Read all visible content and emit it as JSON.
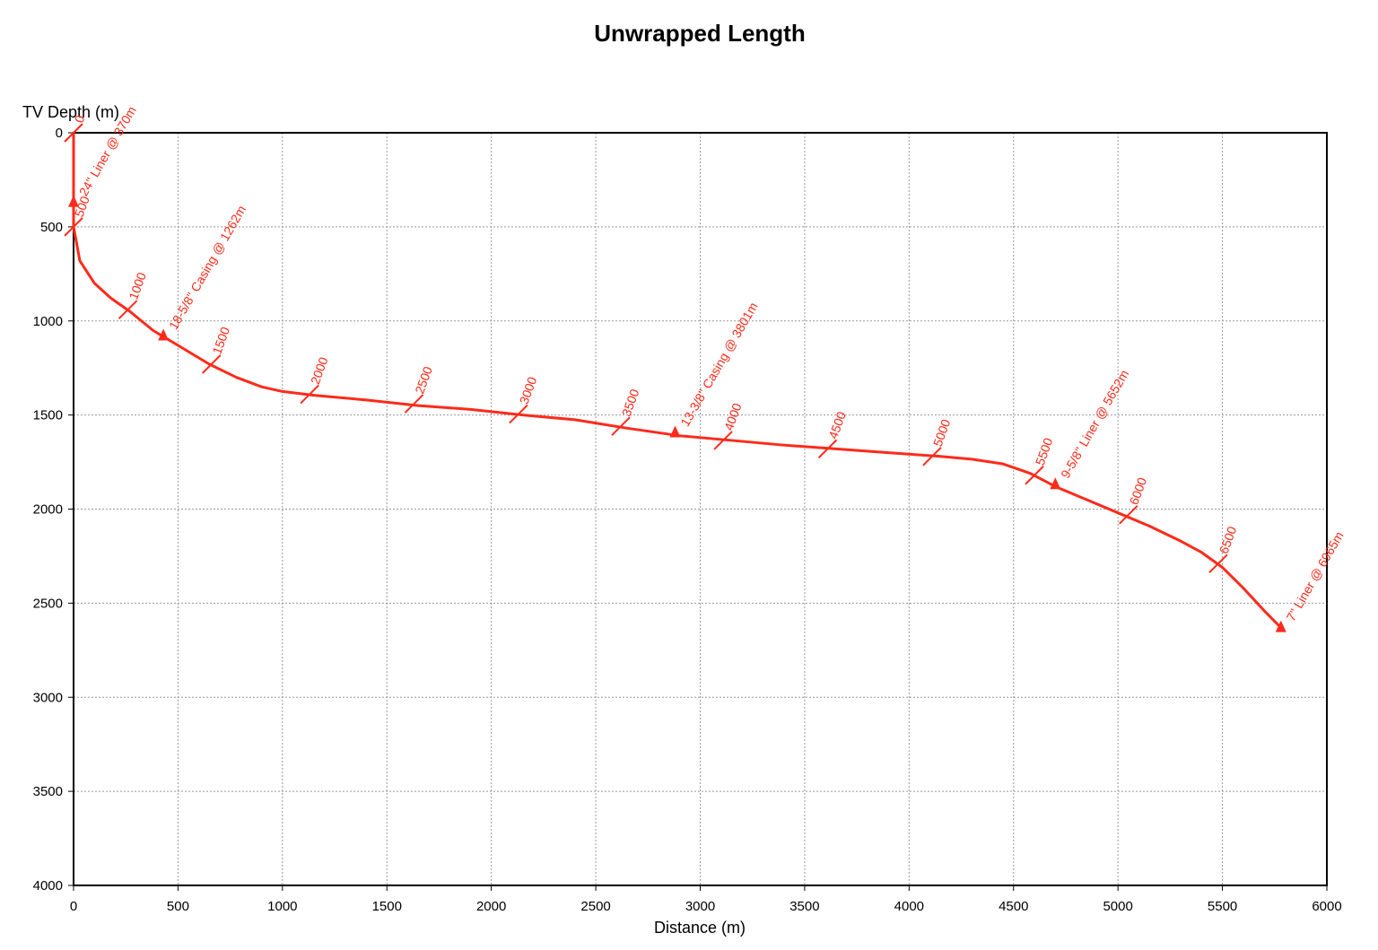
{
  "chart_data": {
    "type": "line",
    "title": "Unwrapped Length",
    "xlabel": "Distance (m)",
    "ylabel": "TV Depth (m)",
    "xlim": [
      0,
      6000
    ],
    "ylim": [
      0,
      4000
    ],
    "y_inverted": true,
    "grid": true,
    "x_ticks": [
      "0",
      "500",
      "1000",
      "1500",
      "2000",
      "2500",
      "3000",
      "3500",
      "4000",
      "4500",
      "5000",
      "5500",
      "6000"
    ],
    "y_ticks": [
      "0",
      "500",
      "1000",
      "1500",
      "2000",
      "2500",
      "3000",
      "3500",
      "4000"
    ],
    "series": [
      {
        "x": [
          0,
          0,
          0,
          0,
          30,
          100,
          180,
          270,
          380,
          500,
          650,
          780,
          900,
          1000,
          1150,
          1400,
          1650,
          1900,
          2150,
          2400,
          2650,
          2900,
          3150,
          3400,
          3650,
          3900,
          4150,
          4300,
          4450,
          4580,
          4700,
          4850,
          5000,
          5150,
          5300,
          5400,
          5500,
          5600,
          5700,
          5780
        ],
        "y": [
          0,
          200,
          370,
          500,
          680,
          800,
          880,
          950,
          1050,
          1130,
          1230,
          1300,
          1350,
          1375,
          1395,
          1420,
          1450,
          1470,
          1500,
          1525,
          1570,
          1610,
          1635,
          1660,
          1680,
          1700,
          1720,
          1735,
          1760,
          1810,
          1880,
          1950,
          2020,
          2090,
          2170,
          2230,
          2310,
          2420,
          2540,
          2630
        ]
      }
    ],
    "md_markers": [
      {
        "label": "0",
        "x": 0,
        "y": 0
      },
      {
        "label": "500",
        "x": 0,
        "y": 500
      },
      {
        "label": "1000",
        "x": 260,
        "y": 940
      },
      {
        "label": "1500",
        "x": 660,
        "y": 1230
      },
      {
        "label": "2000",
        "x": 1130,
        "y": 1390
      },
      {
        "label": "2500",
        "x": 1630,
        "y": 1440
      },
      {
        "label": "3000",
        "x": 2130,
        "y": 1495
      },
      {
        "label": "3500",
        "x": 2620,
        "y": 1560
      },
      {
        "label": "4000",
        "x": 3110,
        "y": 1635
      },
      {
        "label": "4500",
        "x": 3610,
        "y": 1680
      },
      {
        "label": "5000",
        "x": 4110,
        "y": 1720
      },
      {
        "label": "5500",
        "x": 4600,
        "y": 1820
      },
      {
        "label": "6000",
        "x": 5050,
        "y": 2030
      },
      {
        "label": "6500",
        "x": 5480,
        "y": 2290
      }
    ],
    "annotations": [
      {
        "label": "24\" Liner @ 370m",
        "x": 0,
        "y": 370
      },
      {
        "label": "18-5/8\" Casing @ 1262m",
        "x": 430,
        "y": 1080
      },
      {
        "label": "13-3/8\" Casing @ 3801m",
        "x": 2880,
        "y": 1595
      },
      {
        "label": "9-5/8\" Liner @ 5652m",
        "x": 4700,
        "y": 1870
      },
      {
        "label": "7\" Liner @ 6965m",
        "x": 5780,
        "y": 2630
      }
    ],
    "colors": {
      "well": "#ff2a1a",
      "axis": "#000000",
      "grid": "#999999"
    }
  }
}
